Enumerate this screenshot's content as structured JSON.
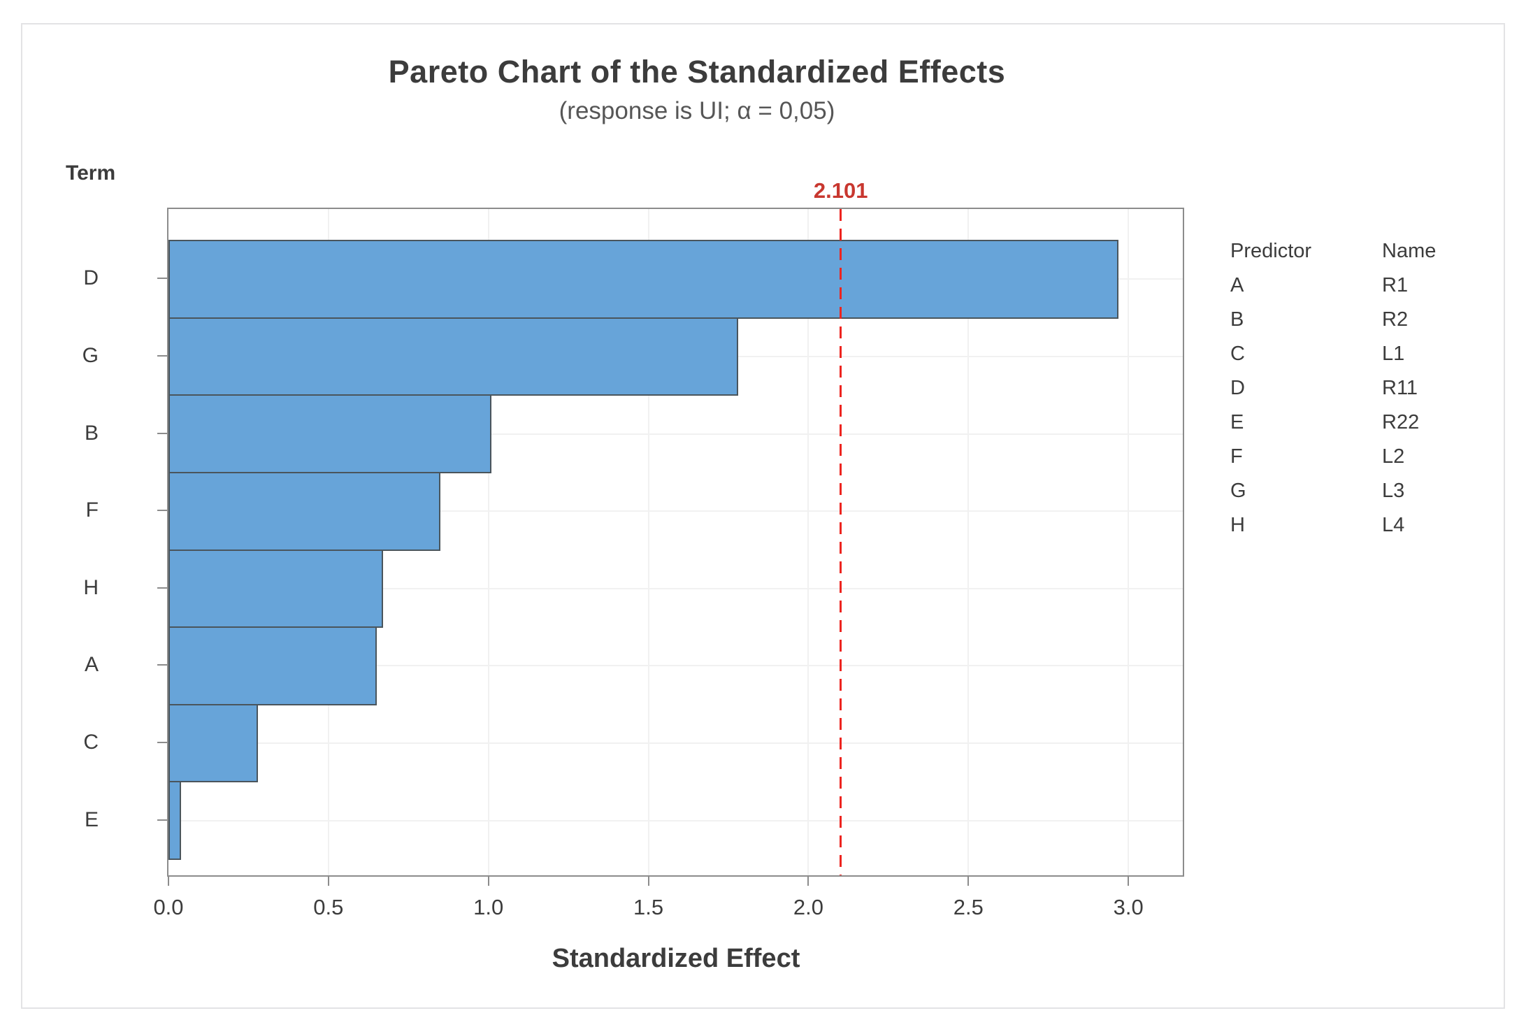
{
  "figure": {
    "title": "Pareto Chart of the Standardized Effects",
    "subtitle": "(response is UI; α = 0,05)"
  },
  "chart_data": {
    "type": "bar",
    "orientation": "horizontal",
    "title": "Pareto Chart of the Standardized Effects",
    "subtitle": "(response is UI; α = 0,05)",
    "y_axis_title": "Term",
    "xlabel": "Standardized Effect",
    "categories": [
      "D",
      "G",
      "B",
      "F",
      "H",
      "A",
      "C",
      "E"
    ],
    "values": [
      2.97,
      1.78,
      1.01,
      0.85,
      0.67,
      0.65,
      0.28,
      0.04
    ],
    "x_ticks": [
      "0.0",
      "0.5",
      "1.0",
      "1.5",
      "2.0",
      "2.5",
      "3.0"
    ],
    "x_tick_values": [
      0,
      0.5,
      1,
      1.5,
      2,
      2.5,
      3
    ],
    "xlim": [
      0,
      3.17
    ],
    "grid": true,
    "reference_line": {
      "value": 2.101,
      "label": "2.101"
    }
  },
  "legend": {
    "headers": [
      "Predictor",
      "Name"
    ],
    "rows": [
      [
        "A",
        "R1"
      ],
      [
        "B",
        "R2"
      ],
      [
        "C",
        "L1"
      ],
      [
        "D",
        "R11"
      ],
      [
        "E",
        "R22"
      ],
      [
        "F",
        "L2"
      ],
      [
        "G",
        "L3"
      ],
      [
        "H",
        "L4"
      ]
    ]
  },
  "colors": {
    "bar_fill": "#67a4d9",
    "bar_border": "#4a555c",
    "reference_line": "#ed241f",
    "reference_label": "#c8372f",
    "frame": "#8c8c8c",
    "gridline": "#f1f1f1",
    "text_dark": "#3c3c3c",
    "text_muted": "#565656",
    "figure_border": "#e3e3e5"
  }
}
